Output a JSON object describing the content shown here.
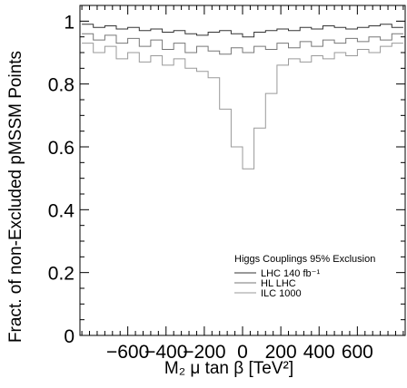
{
  "chart_data": {
    "type": "line",
    "title": "",
    "xlabel": "M₂ μ tan β [TeV²]",
    "ylabel": "Fract. of non-Excluded pMSSM Points",
    "xlim": [
      -850,
      850
    ],
    "ylim": [
      0,
      1.05
    ],
    "xticks": [
      -600,
      -400,
      -200,
      0,
      200,
      400,
      600
    ],
    "xtick_labels": [
      "−600",
      "−400",
      "−200",
      "0",
      "200",
      "400",
      "600"
    ],
    "yticks": [
      0,
      0.2,
      0.4,
      0.6,
      0.8,
      1
    ],
    "ytick_labels": [
      "0",
      "0.2",
      "0.4",
      "0.6",
      "0.8",
      "1"
    ],
    "grid": false,
    "legend_position": "bottom-right",
    "legend_title": "Higgs Couplings 95% Exclusion",
    "x": [
      -810,
      -750,
      -690,
      -630,
      -570,
      -510,
      -450,
      -390,
      -330,
      -270,
      -210,
      -150,
      -90,
      -30,
      30,
      90,
      150,
      210,
      270,
      330,
      390,
      450,
      510,
      570,
      630,
      690,
      750,
      810
    ],
    "series": [
      {
        "name": "LHC 140 fb⁻¹",
        "line_style": "solid",
        "color": "#333333",
        "values": [
          0.99,
          0.98,
          0.985,
          0.975,
          0.98,
          0.97,
          0.975,
          0.965,
          0.97,
          0.96,
          0.955,
          0.965,
          0.97,
          0.96,
          0.95,
          0.965,
          0.97,
          0.975,
          0.97,
          0.98,
          0.975,
          0.985,
          0.98,
          0.975,
          0.98,
          0.985,
          0.99,
          0.98
        ]
      },
      {
        "name": "HL LHC",
        "line_style": "solid",
        "color": "#777777",
        "values": [
          0.96,
          0.94,
          0.955,
          0.93,
          0.945,
          0.92,
          0.94,
          0.91,
          0.93,
          0.9,
          0.92,
          0.905,
          0.895,
          0.915,
          0.9,
          0.92,
          0.91,
          0.93,
          0.915,
          0.935,
          0.92,
          0.94,
          0.93,
          0.945,
          0.935,
          0.95,
          0.94,
          0.96
        ]
      },
      {
        "name": "ILC 1000",
        "line_style": "solid",
        "color": "#999999",
        "values": [
          0.93,
          0.9,
          0.92,
          0.88,
          0.9,
          0.87,
          0.89,
          0.86,
          0.88,
          0.85,
          0.84,
          0.82,
          0.72,
          0.6,
          0.53,
          0.66,
          0.77,
          0.86,
          0.88,
          0.87,
          0.89,
          0.88,
          0.9,
          0.89,
          0.91,
          0.9,
          0.92,
          0.93
        ]
      }
    ]
  }
}
